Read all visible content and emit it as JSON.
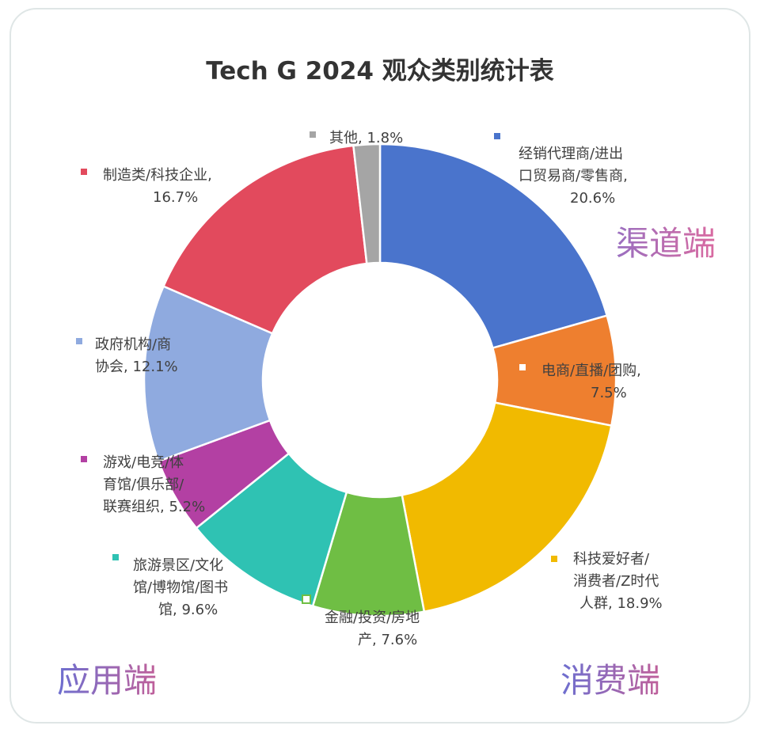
{
  "chart_data": {
    "type": "pie",
    "variant": "donut",
    "title": "Tech G 2024 观众类别统计表",
    "slices": [
      {
        "name": "经销代理商/进出口贸易商/零售商",
        "value": 20.6,
        "value_label": "20.6%",
        "color": "#4a74cc",
        "label_lines": [
          "经销代理商/进出",
          "口贸易商/零售商,",
          "20.6%"
        ],
        "marker": "filled"
      },
      {
        "name": "电商/直播/团购",
        "value": 7.5,
        "value_label": "7.5%",
        "color": "#ee7f2f",
        "label_lines": [
          "电商/直播/团购,",
          "7.5%"
        ],
        "marker": "hollow"
      },
      {
        "name": "科技爱好者/消费者/Z时代人群",
        "value": 18.9,
        "value_label": "18.9%",
        "color": "#f1ba00",
        "label_lines": [
          "科技爱好者/",
          "消费者/Z时代",
          "人群, 18.9%"
        ],
        "marker": "filled"
      },
      {
        "name": "金融/投资/房地产",
        "value": 7.6,
        "value_label": "7.6%",
        "color": "#6fbe44",
        "label_lines": [
          "金融/投资/房地",
          "产, 7.6%"
        ],
        "marker": "hollow"
      },
      {
        "name": "旅游景区/文化馆/博物馆/图书馆",
        "value": 9.6,
        "value_label": "9.6%",
        "color": "#2fc2b3",
        "label_lines": [
          "旅游景区/文化",
          "馆/博物馆/图书",
          "馆, 9.6%"
        ],
        "marker": "filled"
      },
      {
        "name": "游戏/电竞/体育馆/俱乐部/联赛组织",
        "value": 5.2,
        "value_label": "5.2%",
        "color": "#b340a3",
        "label_lines": [
          "游戏/电竞/体",
          "育馆/俱乐部/",
          "联赛组织, 5.2%"
        ],
        "marker": "filled"
      },
      {
        "name": "政府机构/商协会",
        "value": 12.1,
        "value_label": "12.1%",
        "color": "#8faadf",
        "label_lines": [
          "政府机构/商",
          "协会, 12.1%"
        ],
        "marker": "filled"
      },
      {
        "name": "制造类/科技企业",
        "value": 16.7,
        "value_label": "16.7%",
        "color": "#e24a5d",
        "label_lines": [
          "制造类/科技企业,",
          "16.7%"
        ],
        "marker": "filled"
      },
      {
        "name": "其他",
        "value": 1.8,
        "value_label": "1.8%",
        "color": "#a5a5a5",
        "label_lines": [
          "其他, 1.8%"
        ],
        "marker": "filled"
      }
    ],
    "start_angle": "12 o'clock",
    "direction": "clockwise",
    "legend": "none (data labels beside slices)"
  },
  "group_labels": [
    {
      "text": "渠道端",
      "colors": [
        "#9a6fc0",
        "#d96aa0"
      ]
    },
    {
      "text": "应用端",
      "colors": [
        "#6d6fd0",
        "#c0609a"
      ]
    },
    {
      "text": "消费端",
      "colors": [
        "#6d6fd0",
        "#c0609a"
      ]
    }
  ]
}
